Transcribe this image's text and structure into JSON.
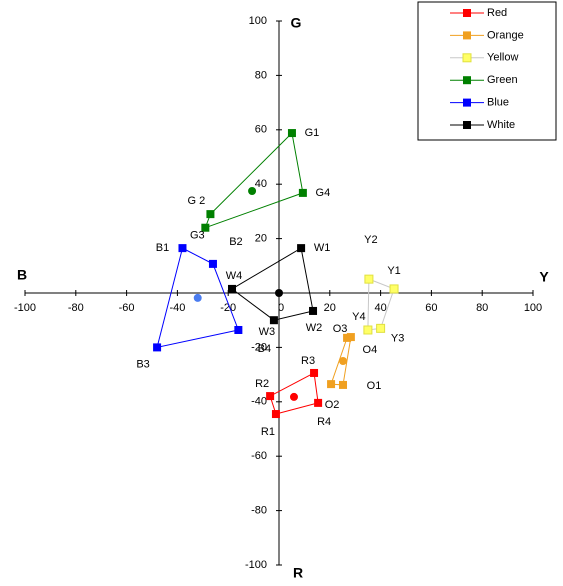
{
  "chart_data": {
    "type": "line",
    "xlim": [
      -100,
      100
    ],
    "ylim": [
      -100,
      100
    ],
    "xticks": [
      -100,
      -80,
      -60,
      -40,
      -20,
      0,
      20,
      40,
      60,
      80,
      100
    ],
    "yticks": [
      -100,
      -80,
      -60,
      -40,
      -20,
      20,
      40,
      60,
      80,
      100
    ],
    "grid": false,
    "legend": "top-right",
    "axis_labels": {
      "top": "G",
      "bottom": "R",
      "left": "B",
      "right": "Y"
    },
    "series": [
      {
        "name": "Red",
        "color": "#ff0000",
        "x": [
          13.8,
          -3.5,
          -1.2,
          15.4
        ],
        "values": [
          -29.4,
          -37.9,
          -44.5,
          -40.4
        ],
        "point_labels": [
          "R3",
          "R2",
          "R1",
          "R4"
        ],
        "center_x": 5.9,
        "center_y": -38.2
      },
      {
        "name": "Orange",
        "color": "#f0a020",
        "x": [
          28.3,
          25.2,
          20.5,
          26.8
        ],
        "values": [
          -16.2,
          -33.8,
          -33.5,
          -16.5
        ],
        "point_labels": [
          "O4",
          "O1",
          "O2",
          "O3"
        ],
        "center_x": 25.2,
        "center_y": -25
      },
      {
        "name": "Yellow",
        "color": "#ffff66",
        "x": [
          35.4,
          45.3,
          40,
          35
        ],
        "values": [
          5.1,
          1.5,
          -13,
          -13.6
        ],
        "point_labels": [
          "Y2",
          "Y1",
          "Y3",
          "Y4"
        ]
      },
      {
        "name": "Green",
        "color": "#008000",
        "x": [
          5.1,
          9.4,
          -29,
          -27
        ],
        "values": [
          58.8,
          36.8,
          24,
          29
        ],
        "point_labels": [
          "G1",
          "G4",
          "G3",
          "G 2"
        ],
        "center_x": -10.6,
        "center_y": 37.5
      },
      {
        "name": "Blue",
        "color": "#0000ff",
        "x": [
          -38,
          -26,
          -16,
          -48
        ],
        "values": [
          16.5,
          10.7,
          -13.6,
          -20
        ],
        "point_labels": [
          "B1",
          "B2",
          "B4",
          "B3"
        ],
        "center_x": -32,
        "center_y": -1.8
      },
      {
        "name": "White",
        "color": "#000000",
        "x": [
          8.7,
          -18.5,
          -2,
          13.4
        ],
        "values": [
          16.5,
          1.5,
          -10,
          -6.6
        ],
        "point_labels": [
          "W1",
          "W4",
          "W3",
          "W2"
        ],
        "center_x": 0,
        "center_y": 0
      }
    ]
  }
}
